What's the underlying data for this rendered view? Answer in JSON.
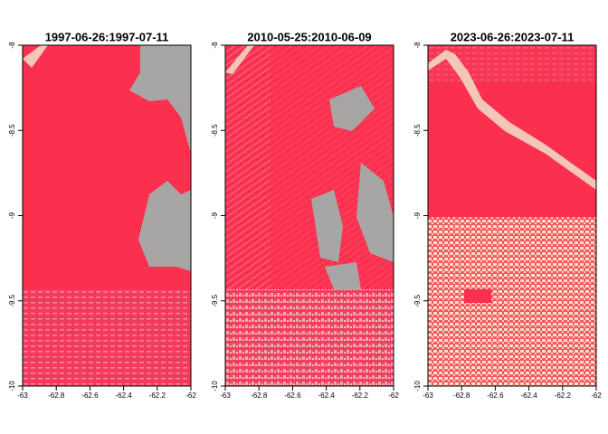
{
  "chart_data": [
    {
      "type": "raster",
      "title": "1997-06-26:1997-07-11",
      "xlim": [
        -63,
        -62
      ],
      "ylim": [
        -10,
        -8
      ],
      "xticks": [
        -63,
        -62.8,
        -62.6,
        -62.4,
        -62.2,
        -62
      ],
      "yticks": [
        -10,
        -9.5,
        -9,
        -8.5,
        -8
      ]
    },
    {
      "type": "raster",
      "title": "2010-05-25:2010-06-09",
      "xlim": [
        -63,
        -62
      ],
      "ylim": [
        -10,
        -8
      ],
      "xticks": [
        -63,
        -62.8,
        -62.6,
        -62.4,
        -62.2,
        -62
      ],
      "yticks": [
        -10,
        -9.5,
        -9,
        -8.5,
        -8
      ]
    },
    {
      "type": "raster",
      "title": "2023-06-26:2023-07-11",
      "xlim": [
        -63,
        -62
      ],
      "ylim": [
        -10,
        -8
      ],
      "xticks": [
        -63,
        -62.8,
        -62.6,
        -62.4,
        -62.2,
        -62
      ],
      "yticks": [
        -10,
        -9.5,
        -9,
        -8.5,
        -8
      ]
    }
  ]
}
